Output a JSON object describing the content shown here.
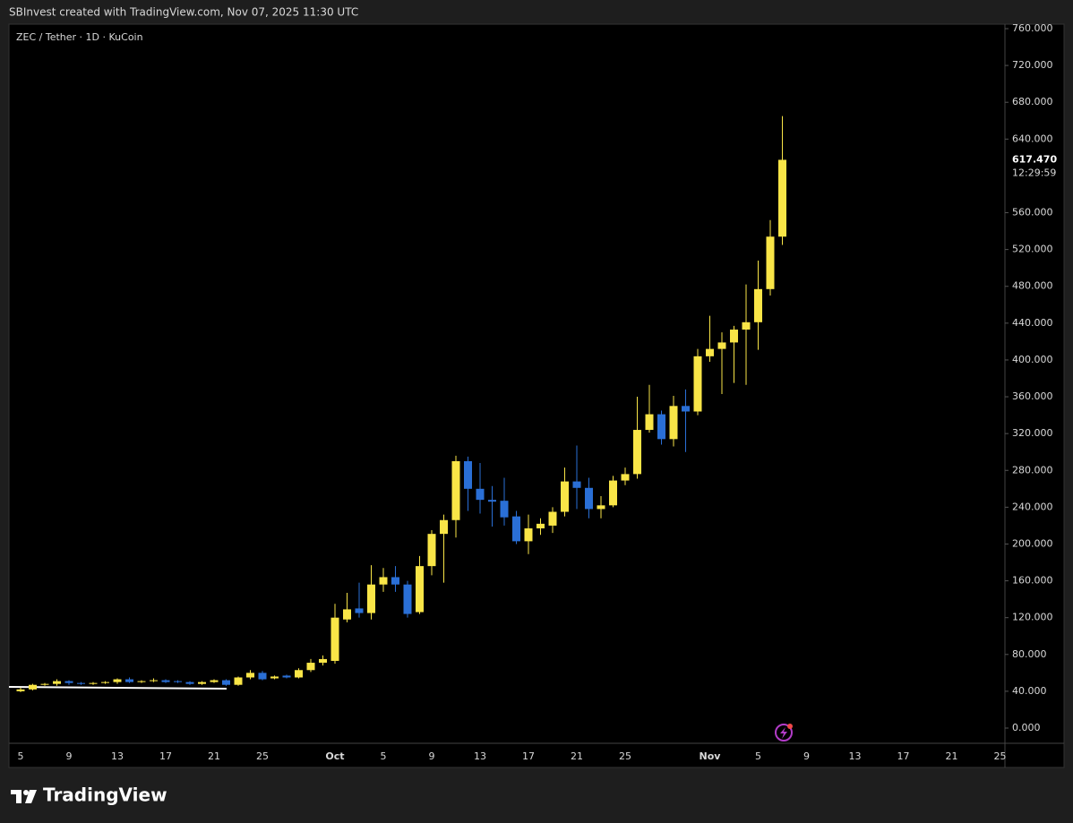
{
  "header": "SBInvest created with TradingView.com, Nov 07, 2025 11:30 UTC",
  "logo": "TradingView",
  "chart_data": {
    "type": "candlestick",
    "title": "ZEC / Tether · 1D · KuCoin",
    "categories": [
      "5",
      null,
      null,
      null,
      "9",
      null,
      null,
      null,
      "13",
      null,
      null,
      null,
      "17",
      null,
      null,
      null,
      "21",
      null,
      null,
      null,
      "25",
      null,
      null,
      null,
      null,
      null,
      "Oct",
      null,
      null,
      null,
      "5",
      null,
      null,
      null,
      "9",
      null,
      null,
      null,
      "13",
      null,
      null,
      null,
      "17",
      null,
      null,
      null,
      "21",
      null,
      null,
      null,
      "25",
      null,
      null,
      null,
      null,
      null,
      null,
      "Nov",
      null,
      null,
      null,
      "5",
      null,
      null,
      null,
      "9",
      null,
      null,
      null,
      "13",
      null,
      null,
      null,
      "17",
      null,
      null,
      null,
      "21",
      null,
      null,
      null,
      "25"
    ],
    "open": [
      40,
      42,
      47,
      48,
      51,
      49,
      48,
      49,
      50,
      53,
      50,
      51,
      52,
      51,
      50,
      48,
      50,
      52,
      47,
      55,
      60,
      54,
      57,
      55,
      63,
      71,
      73,
      118,
      130,
      125,
      156,
      164,
      156,
      126,
      176,
      211,
      226,
      290,
      260,
      248,
      247,
      230,
      203,
      217,
      220,
      235,
      268,
      261,
      238,
      242,
      269,
      276,
      324,
      341,
      314,
      350,
      344,
      404,
      412,
      419,
      433,
      441,
      477,
      534,
      null,
      null,
      null,
      null,
      null,
      null,
      null,
      null,
      null,
      null,
      null,
      null,
      null,
      null,
      null,
      null,
      null,
      null
    ],
    "high": [
      44,
      48,
      49,
      53,
      52,
      50,
      50,
      51,
      54,
      55,
      52,
      54,
      53,
      52,
      51,
      51,
      53,
      53,
      56,
      63,
      62,
      57,
      58,
      65,
      75,
      79,
      135,
      147,
      158,
      177,
      174,
      176,
      160,
      187,
      215,
      232,
      296,
      295,
      288,
      263,
      272,
      236,
      232,
      228,
      240,
      283,
      307,
      272,
      252,
      274,
      283,
      360,
      373,
      345,
      361,
      368,
      412,
      448,
      430,
      437,
      482,
      508,
      552,
      665,
      null,
      null,
      null,
      null,
      null,
      null,
      null,
      null,
      null,
      null,
      null,
      null,
      null,
      null,
      null,
      null,
      null,
      null
    ],
    "low": [
      39,
      41,
      46,
      46,
      47,
      47,
      47,
      48,
      48,
      49,
      49,
      50,
      49,
      49,
      47,
      47,
      49,
      46,
      46,
      53,
      52,
      53,
      54,
      54,
      61,
      68,
      70,
      115,
      120,
      118,
      148,
      148,
      120,
      124,
      166,
      158,
      207,
      236,
      233,
      219,
      220,
      200,
      189,
      210,
      212,
      230,
      238,
      228,
      228,
      240,
      264,
      271,
      321,
      308,
      306,
      300,
      340,
      398,
      363,
      375,
      373,
      411,
      470,
      525,
      null,
      null,
      null,
      null,
      null,
      null,
      null,
      null,
      null,
      null,
      null,
      null,
      null,
      null,
      null,
      null,
      null,
      null
    ],
    "close": [
      42,
      47,
      48,
      51,
      49,
      48,
      49,
      50,
      53,
      50,
      51,
      52,
      50,
      50,
      48,
      50,
      52,
      47,
      55,
      60,
      53,
      56,
      55,
      63,
      71,
      75,
      120,
      129,
      125,
      156,
      164,
      156,
      124,
      176,
      211,
      226,
      290,
      260,
      248,
      246,
      229,
      203,
      217,
      222,
      235,
      268,
      261,
      238,
      242,
      269,
      276,
      324,
      341,
      314,
      350,
      344,
      404,
      412,
      419,
      433,
      441,
      477,
      534,
      617.47,
      null,
      null,
      null,
      null,
      null,
      null,
      null,
      null,
      null,
      null,
      null,
      null,
      null,
      null,
      null,
      null,
      null,
      null
    ],
    "up_color": "#f9e547",
    "down_color": "#2a6fd6",
    "ylim": [
      0,
      760
    ],
    "yticks": [
      {
        "value": 0,
        "label": "0.000"
      },
      {
        "value": 40,
        "label": "40.000"
      },
      {
        "value": 80,
        "label": "80.000"
      },
      {
        "value": 120,
        "label": "120.000"
      },
      {
        "value": 160,
        "label": "160.000"
      },
      {
        "value": 200,
        "label": "200.000"
      },
      {
        "value": 240,
        "label": "240.000"
      },
      {
        "value": 280,
        "label": "280.000"
      },
      {
        "value": 320,
        "label": "320.000"
      },
      {
        "value": 360,
        "label": "360.000"
      },
      {
        "value": 400,
        "label": "400.000"
      },
      {
        "value": 440,
        "label": "440.000"
      },
      {
        "value": 480,
        "label": "480.000"
      },
      {
        "value": 520,
        "label": "520.000"
      },
      {
        "value": 560,
        "label": "560.000"
      },
      {
        "value": 640,
        "label": "640.000"
      },
      {
        "value": 680,
        "label": "680.000"
      },
      {
        "value": 720,
        "label": "720.000"
      },
      {
        "value": 760,
        "label": "760.000"
      }
    ],
    "price_line": {
      "value": 617.47,
      "label": "617.470"
    },
    "countdown": "12:29:59"
  }
}
